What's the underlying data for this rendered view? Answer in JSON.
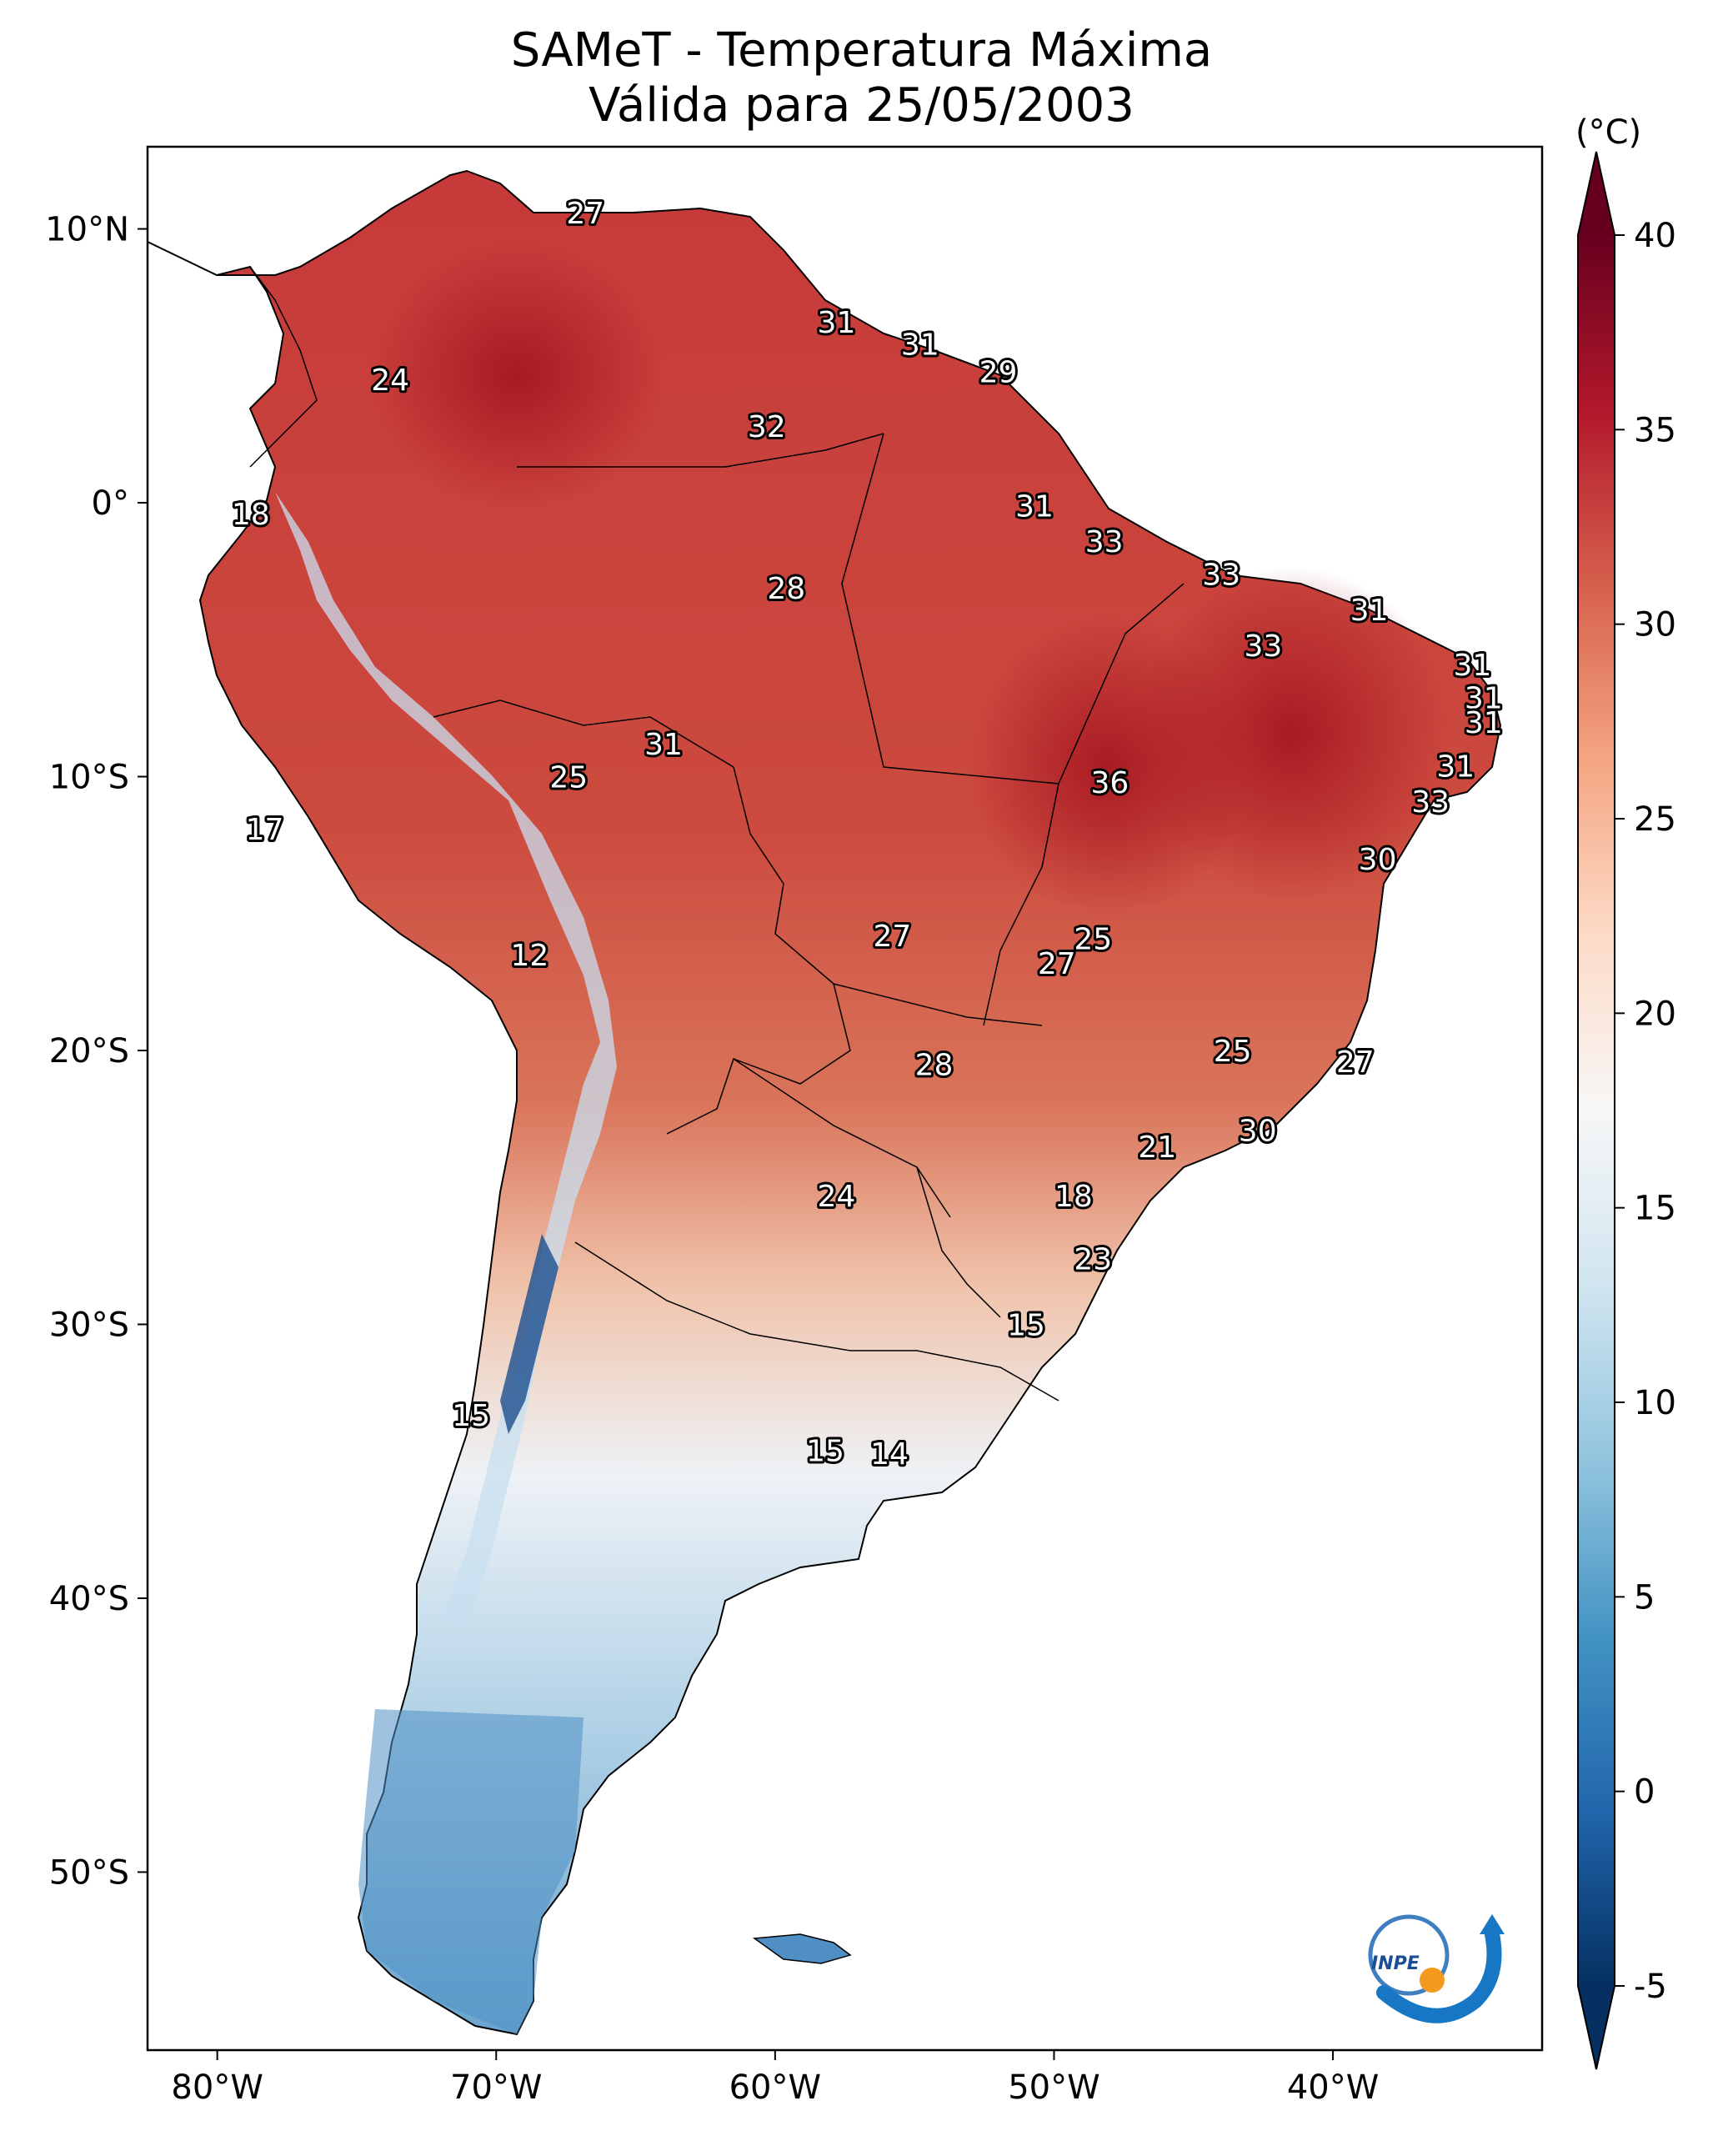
{
  "title": {
    "line1": "SAMeT - Temperatura Máxima",
    "line2": "Válida para 25/05/2003"
  },
  "map": {
    "lon_range": [
      -82.5,
      -32.5
    ],
    "lat_range": [
      -56.5,
      13.0
    ],
    "lat_ticks": [
      {
        "value": 10,
        "label": "10°N"
      },
      {
        "value": 0,
        "label": "0°"
      },
      {
        "value": -10,
        "label": "10°S"
      },
      {
        "value": -20,
        "label": "20°S"
      },
      {
        "value": -30,
        "label": "30°S"
      },
      {
        "value": -40,
        "label": "40°S"
      },
      {
        "value": -50,
        "label": "50°S"
      }
    ],
    "lon_ticks": [
      {
        "value": -80,
        "label": "80°W"
      },
      {
        "value": -70,
        "label": "70°W"
      },
      {
        "value": -60,
        "label": "60°W"
      },
      {
        "value": -50,
        "label": "50°W"
      },
      {
        "value": -40,
        "label": "40°W"
      }
    ],
    "labels": [
      {
        "lon": -66.8,
        "lat": 10.6,
        "value": "27"
      },
      {
        "lon": -73.8,
        "lat": 4.5,
        "value": "24"
      },
      {
        "lon": -57.8,
        "lat": 6.6,
        "value": "31"
      },
      {
        "lon": -54.8,
        "lat": 5.8,
        "value": "31"
      },
      {
        "lon": -52.0,
        "lat": 4.8,
        "value": "29"
      },
      {
        "lon": -60.3,
        "lat": 2.8,
        "value": "32"
      },
      {
        "lon": -78.8,
        "lat": -0.4,
        "value": "18"
      },
      {
        "lon": -50.7,
        "lat": -0.1,
        "value": "31"
      },
      {
        "lon": -48.2,
        "lat": -1.4,
        "value": "33"
      },
      {
        "lon": -44.0,
        "lat": -2.6,
        "value": "33"
      },
      {
        "lon": -59.6,
        "lat": -3.1,
        "value": "28"
      },
      {
        "lon": -38.7,
        "lat": -3.9,
        "value": "31"
      },
      {
        "lon": -42.5,
        "lat": -5.2,
        "value": "33"
      },
      {
        "lon": -35.0,
        "lat": -5.9,
        "value": "31"
      },
      {
        "lon": -34.6,
        "lat": -7.1,
        "value": "31"
      },
      {
        "lon": -34.6,
        "lat": -8.0,
        "value": "31"
      },
      {
        "lon": -64.0,
        "lat": -8.8,
        "value": "31"
      },
      {
        "lon": -67.4,
        "lat": -10.0,
        "value": "25"
      },
      {
        "lon": -48.0,
        "lat": -10.2,
        "value": "36"
      },
      {
        "lon": -35.6,
        "lat": -9.6,
        "value": "31"
      },
      {
        "lon": -36.5,
        "lat": -10.9,
        "value": "33"
      },
      {
        "lon": -78.3,
        "lat": -11.9,
        "value": "17"
      },
      {
        "lon": -38.4,
        "lat": -13.0,
        "value": "30"
      },
      {
        "lon": -55.8,
        "lat": -15.8,
        "value": "27"
      },
      {
        "lon": -48.6,
        "lat": -15.9,
        "value": "25"
      },
      {
        "lon": -49.9,
        "lat": -16.8,
        "value": "27"
      },
      {
        "lon": -68.8,
        "lat": -16.5,
        "value": "12"
      },
      {
        "lon": -54.3,
        "lat": -20.5,
        "value": "28"
      },
      {
        "lon": -43.6,
        "lat": -20.0,
        "value": "25"
      },
      {
        "lon": -39.2,
        "lat": -20.4,
        "value": "27"
      },
      {
        "lon": -42.7,
        "lat": -22.9,
        "value": "30"
      },
      {
        "lon": -46.3,
        "lat": -23.5,
        "value": "21"
      },
      {
        "lon": -57.8,
        "lat": -25.3,
        "value": "24"
      },
      {
        "lon": -49.3,
        "lat": -25.3,
        "value": "18"
      },
      {
        "lon": -48.6,
        "lat": -27.6,
        "value": "23"
      },
      {
        "lon": -51.0,
        "lat": -30.0,
        "value": "15"
      },
      {
        "lon": -70.9,
        "lat": -33.3,
        "value": "15"
      },
      {
        "lon": -58.2,
        "lat": -34.6,
        "value": "15"
      },
      {
        "lon": -55.9,
        "lat": -34.7,
        "value": "14"
      }
    ]
  },
  "colorbar": {
    "unit": "(°C)",
    "min": -5,
    "max": 40,
    "ticks": [
      {
        "value": 40,
        "label": "40"
      },
      {
        "value": 35,
        "label": "35"
      },
      {
        "value": 30,
        "label": "30"
      },
      {
        "value": 25,
        "label": "25"
      },
      {
        "value": 20,
        "label": "20"
      },
      {
        "value": 15,
        "label": "15"
      },
      {
        "value": 10,
        "label": "10"
      },
      {
        "value": 5,
        "label": "5"
      },
      {
        "value": 0,
        "label": "0"
      },
      {
        "value": -5,
        "label": "-5"
      }
    ],
    "colors": [
      "#053061",
      "#2166ac",
      "#4393c3",
      "#92c5de",
      "#d1e5f0",
      "#f7f7f7",
      "#fddbc7",
      "#f4a582",
      "#d6604d",
      "#b2182b",
      "#67001f"
    ]
  },
  "logo": {
    "text": "INPE"
  }
}
